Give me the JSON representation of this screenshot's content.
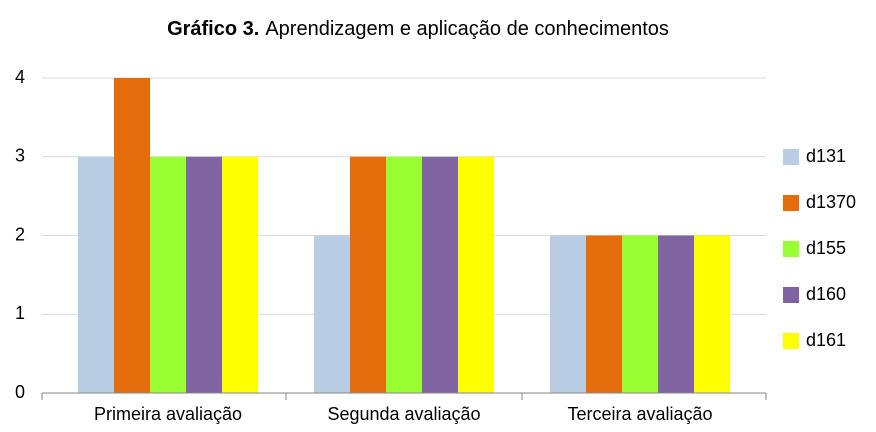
{
  "chart_data": {
    "type": "bar",
    "title": [
      "Gráfico 3.",
      "Aprendizagem e aplicação de conhecimentos"
    ],
    "categories": [
      "Primeira avaliação",
      "Segunda avaliação",
      "Terceira avaliação"
    ],
    "series": [
      {
        "name": "d131",
        "color": "#b9cde5",
        "values": [
          3,
          2,
          2
        ]
      },
      {
        "name": "d1370",
        "color": "#e46c0a",
        "values": [
          4,
          3,
          2
        ]
      },
      {
        "name": "d155",
        "color": "#99ff33",
        "values": [
          3,
          3,
          2
        ]
      },
      {
        "name": "d160",
        "color": "#8064a2",
        "values": [
          3,
          3,
          2
        ]
      },
      {
        "name": "d161",
        "color": "#ffff00",
        "values": [
          3,
          3,
          2
        ]
      }
    ],
    "ylim": [
      0,
      4
    ],
    "yticks": [
      0,
      1,
      2,
      3,
      4
    ],
    "grid": true,
    "legend": "right"
  }
}
